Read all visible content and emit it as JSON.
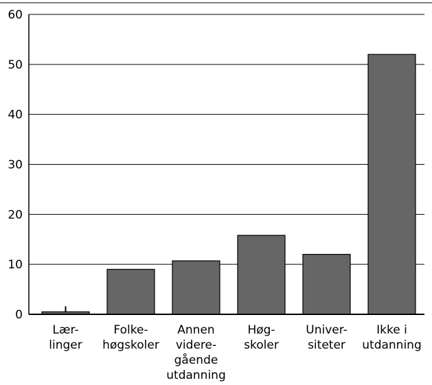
{
  "chart_data": {
    "type": "bar",
    "title": "",
    "xlabel": "",
    "ylabel": "",
    "ylim": [
      0,
      60
    ],
    "yticks": [
      0,
      10,
      20,
      30,
      40,
      50,
      60
    ],
    "grid": "horizontal",
    "bar_color": "#666666",
    "categories": [
      [
        "Lær-",
        "linger"
      ],
      [
        "Folke-",
        "høgskoler"
      ],
      [
        "Annen",
        "videre-",
        "gående",
        "utdanning"
      ],
      [
        "Høg-",
        "skoler"
      ],
      [
        "Univer-",
        "siteter"
      ],
      [
        "Ikke i",
        "utdanning"
      ]
    ],
    "values": [
      0.5,
      9,
      10.7,
      15.8,
      12,
      52
    ]
  }
}
